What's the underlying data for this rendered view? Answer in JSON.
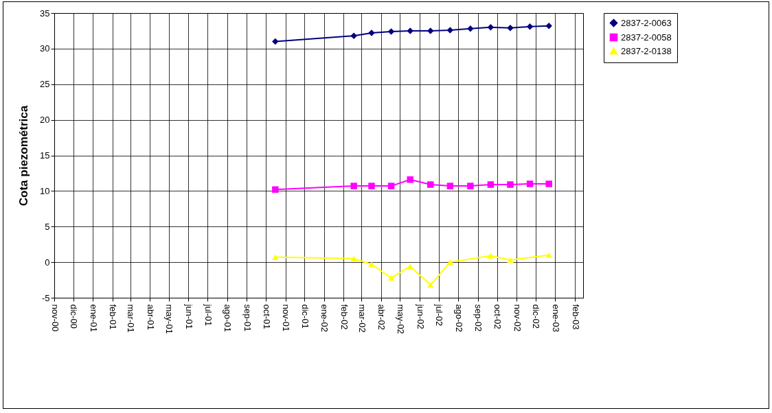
{
  "chart_data": {
    "type": "line",
    "ylabel": "Cota piezométrica",
    "x": [
      "2001-10-16",
      "2002-02-17",
      "2002-03-17",
      "2002-04-17",
      "2002-05-17",
      "2002-06-18",
      "2002-07-19",
      "2002-08-20",
      "2002-09-21",
      "2002-10-22",
      "2002-11-22",
      "2002-12-22"
    ],
    "series": [
      {
        "name": "2837-2-0063",
        "color": "#000080",
        "marker": "diamond",
        "values": [
          31.0,
          31.8,
          32.2,
          32.4,
          32.5,
          32.5,
          32.6,
          32.8,
          33.0,
          32.9,
          33.1,
          33.2
        ]
      },
      {
        "name": "2837-2-0058",
        "color": "#ff00ff",
        "marker": "square",
        "values": [
          10.2,
          10.7,
          10.7,
          10.7,
          11.6,
          10.9,
          10.7,
          10.7,
          10.9,
          10.9,
          11.0,
          11.0
        ]
      },
      {
        "name": "2837-2-0138",
        "color": "#ffff00",
        "marker": "triangle",
        "values": [
          0.7,
          0.5,
          -0.3,
          -2.2,
          -0.6,
          -3.2,
          0.0,
          null,
          0.9,
          0.3,
          null,
          1.0
        ]
      }
    ],
    "xlim": [
      "2000-11-01",
      "2003-02-14"
    ],
    "xticks": [
      {
        "value": "2000-11-01",
        "label": "nov-00"
      },
      {
        "value": "2000-12-01",
        "label": "dic-00"
      },
      {
        "value": "2001-01-01",
        "label": "ene-01"
      },
      {
        "value": "2001-02-01",
        "label": "feb-01"
      },
      {
        "value": "2001-03-01",
        "label": "mar-01"
      },
      {
        "value": "2001-04-01",
        "label": "abr-01"
      },
      {
        "value": "2001-05-01",
        "label": "may-01"
      },
      {
        "value": "2001-06-01",
        "label": "jun-01"
      },
      {
        "value": "2001-07-01",
        "label": "jul-01"
      },
      {
        "value": "2001-08-01",
        "label": "ago-01"
      },
      {
        "value": "2001-09-01",
        "label": "sep-01"
      },
      {
        "value": "2001-10-01",
        "label": "oct-01"
      },
      {
        "value": "2001-11-01",
        "label": "nov-01"
      },
      {
        "value": "2001-12-01",
        "label": "dic-01"
      },
      {
        "value": "2002-01-01",
        "label": "ene-02"
      },
      {
        "value": "2002-02-01",
        "label": "feb-02"
      },
      {
        "value": "2002-03-01",
        "label": "mar-02"
      },
      {
        "value": "2002-04-01",
        "label": "abr-02"
      },
      {
        "value": "2002-05-01",
        "label": "may-02"
      },
      {
        "value": "2002-06-01",
        "label": "jun-02"
      },
      {
        "value": "2002-07-01",
        "label": "jul-02"
      },
      {
        "value": "2002-08-01",
        "label": "ago-02"
      },
      {
        "value": "2002-09-01",
        "label": "sep-02"
      },
      {
        "value": "2002-10-01",
        "label": "oct-02"
      },
      {
        "value": "2002-11-01",
        "label": "nov-02"
      },
      {
        "value": "2002-12-01",
        "label": "dic-02"
      },
      {
        "value": "2003-01-01",
        "label": "ene-03"
      },
      {
        "value": "2003-02-01",
        "label": "feb-03"
      }
    ],
    "ylim": [
      -5,
      35
    ],
    "yticks": [
      -5,
      0,
      5,
      10,
      15,
      20,
      25,
      30,
      35
    ],
    "grid": true,
    "legend": "right",
    "line_style": "solid"
  }
}
